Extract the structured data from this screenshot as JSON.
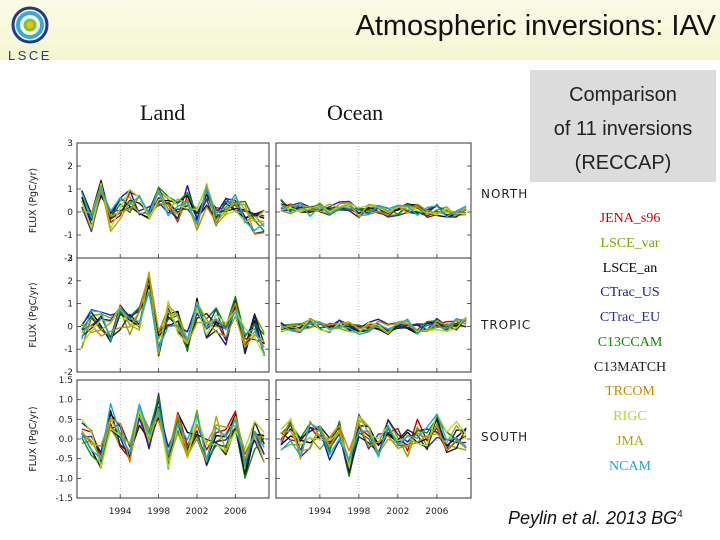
{
  "title": "Atmospheric inversions: IAV",
  "logo": {
    "text": "LSCE",
    "colors": [
      "#1e3c8c",
      "#3aa9d9",
      "#f2c200",
      "#7cc24a"
    ]
  },
  "columns": {
    "land": "Land",
    "ocean": "Ocean"
  },
  "comparison_box": {
    "line1": "Comparison",
    "line2": "of 11 inversions",
    "line3": "(RECCAP)"
  },
  "regions": {
    "north": "NORTH",
    "tropic": "TROPIC",
    "south": "SOUTH"
  },
  "y_axis_label": "FLUX (PgC/yr)",
  "legend": [
    {
      "name": "JENA_s96",
      "color": "#cc0000"
    },
    {
      "name": "LSCE_var",
      "color": "#77aa00"
    },
    {
      "name": "LSCE_an",
      "color": "#000000"
    },
    {
      "name": "CTrac_US",
      "color": "#1a1a9a"
    },
    {
      "name": "CTrac_EU",
      "color": "#2a2aaa"
    },
    {
      "name": "C13CCAM",
      "color": "#0a8a0a"
    },
    {
      "name": "C13MATCH",
      "color": "#202020"
    },
    {
      "name": "TRCOM",
      "color": "#cc8800"
    },
    {
      "name": "RIGC",
      "color": "#aadd22"
    },
    {
      "name": "JMA",
      "color": "#aaaa00"
    },
    {
      "name": "NCAM",
      "color": "#18a8d8"
    }
  ],
  "citation": {
    "text": "Peylin et al. 2013 BG",
    "superscript": "4"
  },
  "chart_data": {
    "type": "line",
    "x": [
      1990,
      1991,
      1992,
      1993,
      1994,
      1995,
      1996,
      1997,
      1998,
      1999,
      2000,
      2001,
      2002,
      2003,
      2004,
      2005,
      2006,
      2007,
      2008,
      2009
    ],
    "xlim": [
      1989.5,
      2009.5
    ],
    "xticks": [
      1994,
      1998,
      2002,
      2006
    ],
    "xtick_labels": [
      "1994",
      "1998",
      "2002",
      "2006"
    ],
    "panels": [
      {
        "region": "NORTH",
        "column": "Land",
        "row": 0,
        "ylim": [
          -2,
          3
        ],
        "yticks": [
          -2,
          -1,
          0,
          1,
          2,
          3
        ],
        "ytick_labels": [
          "-2",
          "-1",
          "0",
          "1",
          "2",
          "3"
        ],
        "base": [
          0.4,
          -0.4,
          1.0,
          -0.4,
          0.1,
          0.5,
          0.4,
          -0.3,
          0.6,
          0.3,
          0.1,
          0.6,
          -0.4,
          0.7,
          -0.2,
          0.3,
          0.4,
          0.0,
          -0.6,
          -0.4
        ],
        "spread": 0.55
      },
      {
        "region": "NORTH",
        "column": "Ocean",
        "row": 0,
        "ylim": [
          -2,
          3
        ],
        "yticks": [
          -2,
          -1,
          0,
          1,
          2,
          3
        ],
        "ytick_labels": [
          "-2",
          "-1",
          "0",
          "1",
          "2",
          "3"
        ],
        "base": [
          0.3,
          0.1,
          0.2,
          0.0,
          0.2,
          0.1,
          0.2,
          0.3,
          0.0,
          0.1,
          0.2,
          0.0,
          0.1,
          0.2,
          0.1,
          0.0,
          0.1,
          0.0,
          -0.1,
          0.1
        ],
        "spread": 0.25
      },
      {
        "region": "TROPIC",
        "column": "Land",
        "row": 1,
        "ylim": [
          -2,
          3
        ],
        "yticks": [
          -2,
          -1,
          0,
          1,
          2,
          3
        ],
        "ytick_labels": [
          "-2",
          "-1",
          "0",
          "1",
          "2",
          "3"
        ],
        "base": [
          -0.4,
          0.2,
          0.1,
          -0.1,
          0.4,
          0.1,
          0.3,
          1.8,
          -0.8,
          0.6,
          0.1,
          -0.5,
          0.7,
          0.0,
          0.3,
          -0.3,
          0.8,
          -0.6,
          0.0,
          -0.7
        ],
        "spread": 0.6
      },
      {
        "region": "TROPIC",
        "column": "Ocean",
        "row": 1,
        "ylim": [
          -2,
          3
        ],
        "yticks": [
          -2,
          -1,
          0,
          1,
          2,
          3
        ],
        "ytick_labels": [
          "-2",
          "-1",
          "0",
          "1",
          "2",
          "3"
        ],
        "base": [
          0.0,
          0.0,
          -0.1,
          0.1,
          0.0,
          -0.1,
          0.1,
          0.0,
          -0.1,
          0.0,
          0.1,
          -0.1,
          0.0,
          0.1,
          -0.1,
          0.0,
          0.1,
          0.0,
          0.1,
          0.2
        ],
        "spread": 0.25
      },
      {
        "region": "SOUTH",
        "column": "Land",
        "row": 2,
        "ylim": [
          -1.5,
          1.5
        ],
        "yticks": [
          -1.5,
          -1.0,
          -0.5,
          0.0,
          0.5,
          1.0,
          1.5
        ],
        "ytick_labels": [
          "-1.5",
          "-1.0",
          "-0.5",
          "0.0",
          "0.5",
          "1.0",
          "1.5"
        ],
        "base": [
          0.2,
          -0.1,
          -0.4,
          0.5,
          0.1,
          -0.2,
          0.6,
          0.1,
          0.8,
          -0.4,
          0.3,
          -0.1,
          0.4,
          -0.3,
          0.2,
          -0.1,
          0.4,
          -0.6,
          0.1,
          -0.2
        ],
        "spread": 0.4
      },
      {
        "region": "SOUTH",
        "column": "Ocean",
        "row": 2,
        "ylim": [
          -1.5,
          1.5
        ],
        "yticks": [
          -1.5,
          -1.0,
          -0.5,
          0.0,
          0.5,
          1.0,
          1.5
        ],
        "ytick_labels": [
          "-1.5",
          "-1.0",
          "-0.5",
          "0.0",
          "0.5",
          "1.0",
          "1.5"
        ],
        "base": [
          0.0,
          0.2,
          -0.2,
          0.1,
          0.0,
          -0.3,
          0.2,
          -0.6,
          0.4,
          0.0,
          -0.2,
          0.3,
          0.1,
          -0.1,
          0.2,
          0.0,
          0.3,
          -0.1,
          0.1,
          0.0
        ],
        "spread": 0.35
      }
    ]
  }
}
